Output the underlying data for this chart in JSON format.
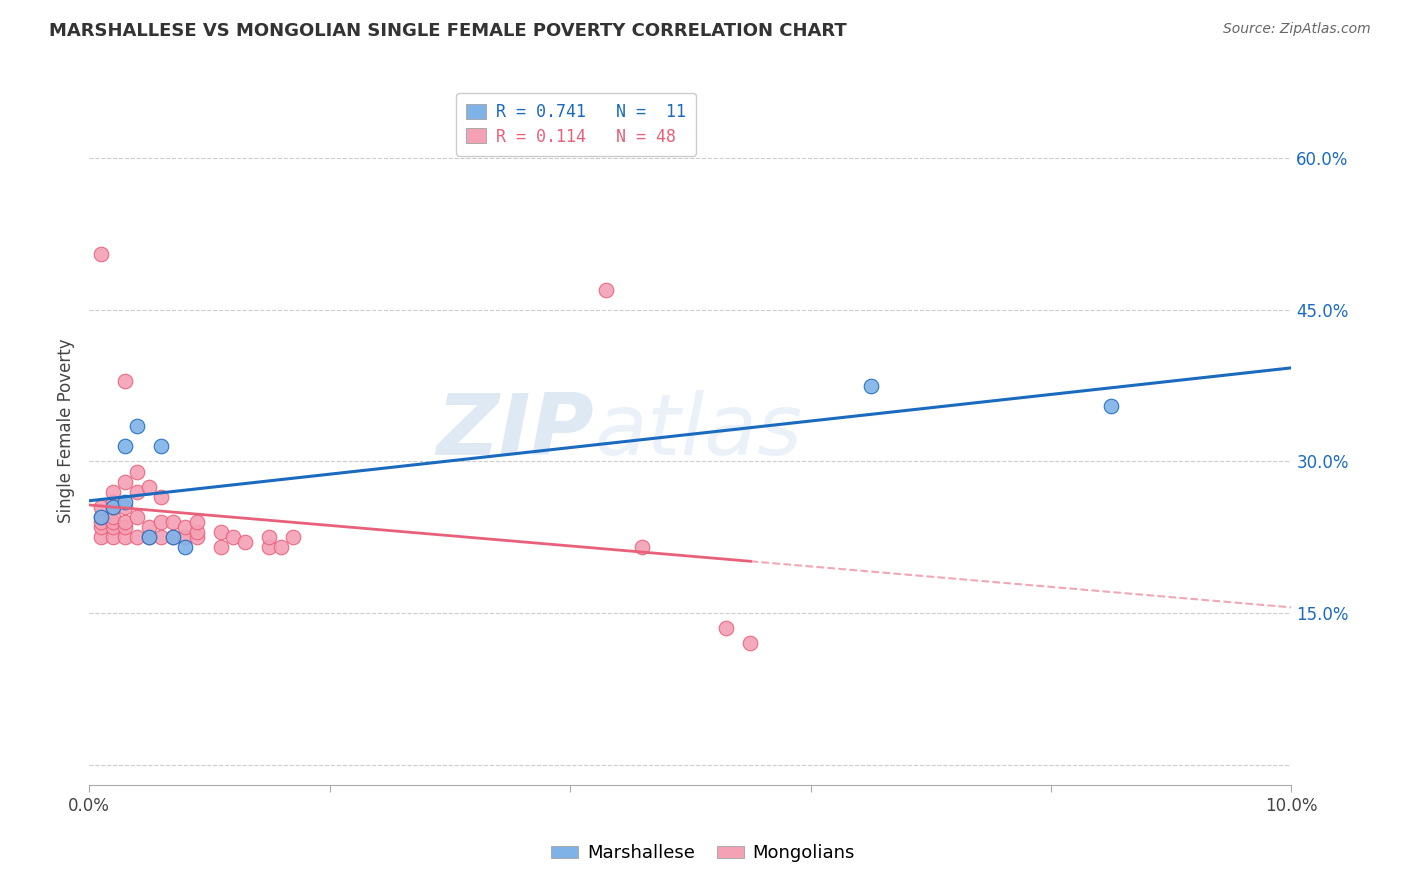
{
  "title": "MARSHALLESE VS MONGOLIAN SINGLE FEMALE POVERTY CORRELATION CHART",
  "source": "Source: ZipAtlas.com",
  "ylabel": "Single Female Poverty",
  "xlim": [
    0.0,
    0.1
  ],
  "ylim": [
    -0.02,
    0.68
  ],
  "marshallese_color": "#7fb3e8",
  "mongolian_color": "#f4a0b5",
  "blue_line_color": "#1a6bbf",
  "pink_line_color": "#e8607a",
  "watermark_zip": "ZIP",
  "watermark_atlas": "atlas",
  "marshallese_x": [
    0.001,
    0.002,
    0.003,
    0.003,
    0.004,
    0.005,
    0.006,
    0.007,
    0.008,
    0.065,
    0.085
  ],
  "marshallese_y": [
    0.245,
    0.255,
    0.26,
    0.315,
    0.335,
    0.225,
    0.315,
    0.225,
    0.215,
    0.375,
    0.355
  ],
  "mongolian_x": [
    0.001,
    0.001,
    0.001,
    0.001,
    0.001,
    0.001,
    0.002,
    0.002,
    0.002,
    0.002,
    0.002,
    0.002,
    0.002,
    0.003,
    0.003,
    0.003,
    0.003,
    0.003,
    0.003,
    0.004,
    0.004,
    0.004,
    0.004,
    0.005,
    0.005,
    0.005,
    0.006,
    0.006,
    0.006,
    0.007,
    0.007,
    0.008,
    0.008,
    0.009,
    0.009,
    0.009,
    0.011,
    0.011,
    0.012,
    0.013,
    0.015,
    0.015,
    0.016,
    0.017,
    0.043,
    0.046,
    0.053,
    0.055
  ],
  "mongolian_y": [
    0.225,
    0.235,
    0.24,
    0.245,
    0.255,
    0.505,
    0.225,
    0.235,
    0.24,
    0.245,
    0.255,
    0.26,
    0.27,
    0.225,
    0.235,
    0.24,
    0.255,
    0.28,
    0.38,
    0.225,
    0.245,
    0.27,
    0.29,
    0.225,
    0.235,
    0.275,
    0.225,
    0.24,
    0.265,
    0.225,
    0.24,
    0.225,
    0.235,
    0.225,
    0.23,
    0.24,
    0.215,
    0.23,
    0.225,
    0.22,
    0.215,
    0.225,
    0.215,
    0.225,
    0.47,
    0.215,
    0.135,
    0.12
  ]
}
